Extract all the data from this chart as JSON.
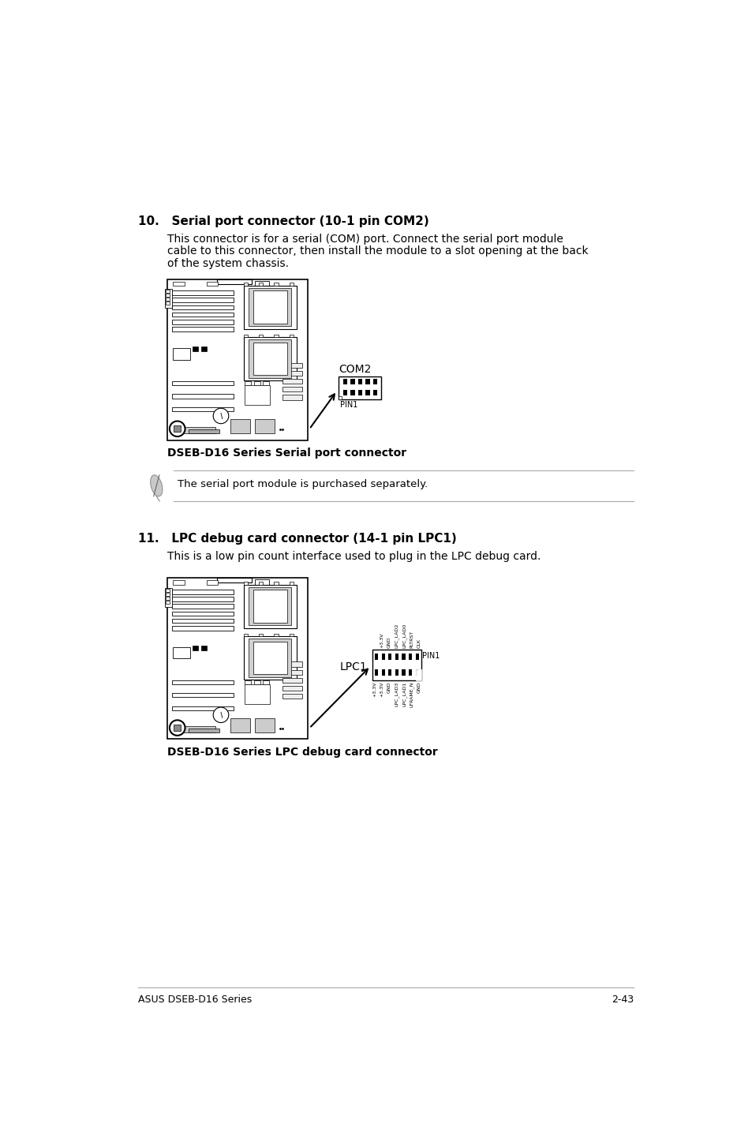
{
  "bg_color": "#ffffff",
  "section10_title": "10.   Serial port connector (10-1 pin COM2)",
  "section10_body1": "This connector is for a serial (COM) port. Connect the serial port module",
  "section10_body2": "cable to this connector, then install the module to a slot opening at the back",
  "section10_body3": "of the system chassis.",
  "section10_diagram_caption": "DSEB-D16 Series Serial port connector",
  "section10_com2_label": "COM2",
  "section10_pin1_label": "PIN1",
  "section10_note": "The serial port module is purchased separately.",
  "section11_title": "11.   LPC debug card connector (14-1 pin LPC1)",
  "section11_body": "This is a low pin count interface used to plug in the LPC debug card.",
  "section11_diagram_caption": "DSEB-D16 Series LPC debug card connector",
  "section11_lpc1_label": "LPC1",
  "section11_pin1_label": "PIN1",
  "lpc_top_labels": [
    "+3.3V",
    "GND",
    "LPC_LAD2",
    "LPC_LAD0",
    "PLTRST",
    "CLK"
  ],
  "lpc_bot_labels": [
    "+3.3V",
    "+3.3V",
    "GND",
    "LPC_LAD3",
    "LPC_LAD1",
    "LFRAME_N",
    "GND",
    "GND"
  ],
  "footer_left": "ASUS DSEB-D16 Series",
  "footer_right": "2-43",
  "title_fontsize": 11,
  "body_fontsize": 10,
  "caption_fontsize": 10,
  "footer_fontsize": 9,
  "note_fontsize": 9.5
}
